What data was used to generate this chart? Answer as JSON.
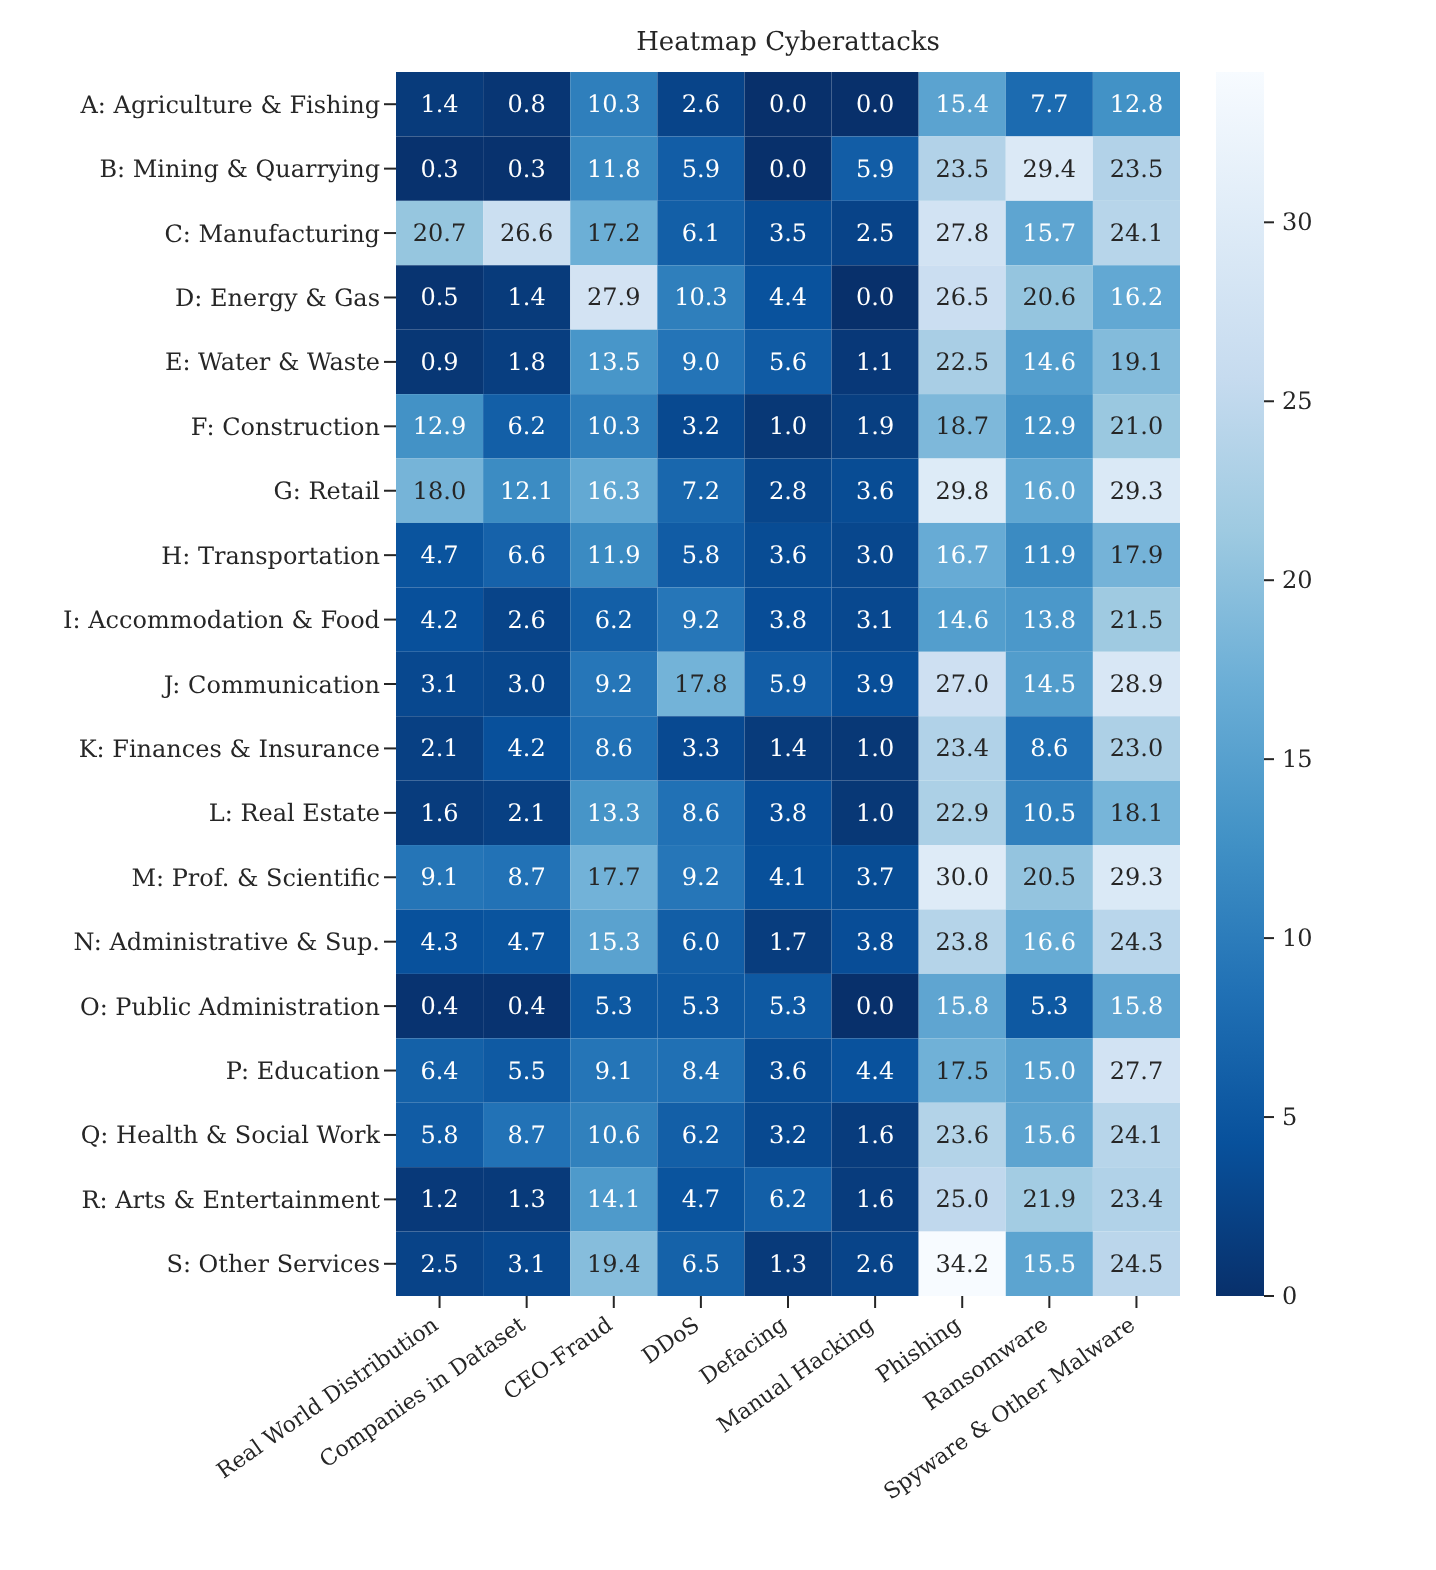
{
  "chart_data": {
    "type": "heatmap",
    "title": "Heatmap Cyberattacks",
    "categories": [
      "Real World Distribution",
      "Companies in Dataset",
      "CEO-Fraud",
      "DDoS",
      "Defacing",
      "Manual Hacking",
      "Phishing",
      "Ransomware",
      "Spyware & Other Malware"
    ],
    "y_categories": [
      "A: Agriculture & Fishing",
      "B: Mining & Quarrying",
      "C: Manufacturing",
      "D: Energy & Gas",
      "E: Water & Waste",
      "F: Construction",
      "G: Retail",
      "H: Transportation",
      "I: Accommodation & Food",
      "J: Communication",
      "K: Finances & Insurance",
      "L: Real Estate",
      "M: Prof. & Scientific",
      "N: Administrative & Sup.",
      "O: Public Administration",
      "P: Education",
      "Q: Health & Social Work",
      "R: Arts & Entertainment",
      "S: Other Services"
    ],
    "cells": [
      [
        1.4,
        0.8,
        10.3,
        2.6,
        0.0,
        0.0,
        15.4,
        7.7,
        12.8
      ],
      [
        0.3,
        0.3,
        11.8,
        5.9,
        0.0,
        5.9,
        23.5,
        29.4,
        23.5
      ],
      [
        20.7,
        26.6,
        17.2,
        6.1,
        3.5,
        2.5,
        27.8,
        15.7,
        24.1
      ],
      [
        0.5,
        1.4,
        27.9,
        10.3,
        4.4,
        0.0,
        26.5,
        20.6,
        16.2
      ],
      [
        0.9,
        1.8,
        13.5,
        9.0,
        5.6,
        1.1,
        22.5,
        14.6,
        19.1
      ],
      [
        12.9,
        6.2,
        10.3,
        3.2,
        1.0,
        1.9,
        18.7,
        12.9,
        21.0
      ],
      [
        18.0,
        12.1,
        16.3,
        7.2,
        2.8,
        3.6,
        29.8,
        16.0,
        29.3
      ],
      [
        4.7,
        6.6,
        11.9,
        5.8,
        3.6,
        3.0,
        16.7,
        11.9,
        17.9
      ],
      [
        4.2,
        2.6,
        6.2,
        9.2,
        3.8,
        3.1,
        14.6,
        13.8,
        21.5
      ],
      [
        3.1,
        3.0,
        9.2,
        17.8,
        5.9,
        3.9,
        27.0,
        14.5,
        28.9
      ],
      [
        2.1,
        4.2,
        8.6,
        3.3,
        1.4,
        1.0,
        23.4,
        8.6,
        23.0
      ],
      [
        1.6,
        2.1,
        13.3,
        8.6,
        3.8,
        1.0,
        22.9,
        10.5,
        18.1
      ],
      [
        9.1,
        8.7,
        17.7,
        9.2,
        4.1,
        3.7,
        30.0,
        20.5,
        29.3
      ],
      [
        4.3,
        4.7,
        15.3,
        6.0,
        1.7,
        3.8,
        23.8,
        16.6,
        24.3
      ],
      [
        0.4,
        0.4,
        5.3,
        5.3,
        5.3,
        0.0,
        15.8,
        5.3,
        15.8
      ],
      [
        6.4,
        5.5,
        9.1,
        8.4,
        3.6,
        4.4,
        17.5,
        15.0,
        27.7
      ],
      [
        5.8,
        8.7,
        10.6,
        6.2,
        3.2,
        1.6,
        23.6,
        15.6,
        24.1
      ],
      [
        1.2,
        1.3,
        14.1,
        4.7,
        6.2,
        1.6,
        25.0,
        21.9,
        23.4
      ],
      [
        2.5,
        3.1,
        19.4,
        6.5,
        1.3,
        2.6,
        34.2,
        15.5,
        24.5
      ]
    ],
    "cell_labels": [
      [
        "1.4",
        "0.8",
        "10.3",
        "2.6",
        "0.0",
        "0.0",
        "15.4",
        "7.7",
        "12.8"
      ],
      [
        "0.3",
        "0.3",
        "11.8",
        "5.9",
        "0.0",
        "5.9",
        "23.5",
        "29.4",
        "23.5"
      ],
      [
        "20.7",
        "26.6",
        "17.2",
        "6.1",
        "3.5",
        "2.5",
        "27.8",
        "15.7",
        "24.1"
      ],
      [
        "0.5",
        "1.4",
        "27.9",
        "10.3",
        "4.4",
        "0.0",
        "26.5",
        "20.6",
        "16.2"
      ],
      [
        "0.9",
        "1.8",
        "13.5",
        "9.0",
        "5.6",
        "1.1",
        "22.5",
        "14.6",
        "19.1"
      ],
      [
        "12.9",
        "6.2",
        "10.3",
        "3.2",
        "1.0",
        "1.9",
        "18.7",
        "12.9",
        "21.0"
      ],
      [
        "18.0",
        "12.1",
        "16.3",
        "7.2",
        "2.8",
        "3.6",
        "29.8",
        "16.0",
        "29.3"
      ],
      [
        "4.7",
        "6.6",
        "11.9",
        "5.8",
        "3.6",
        "3.0",
        "16.7",
        "11.9",
        "17.9"
      ],
      [
        "4.2",
        "2.6",
        "6.2",
        "9.2",
        "3.8",
        "3.1",
        "14.6",
        "13.8",
        "21.5"
      ],
      [
        "3.1",
        "3.0",
        "9.2",
        "17.8",
        "5.9",
        "3.9",
        "27.0",
        "14.5",
        "28.9"
      ],
      [
        "2.1",
        "4.2",
        "8.6",
        "3.3",
        "1.4",
        "1.0",
        "23.4",
        "8.6",
        "23.0"
      ],
      [
        "1.6",
        "2.1",
        "13.3",
        "8.6",
        "3.8",
        "1.0",
        "22.9",
        "10.5",
        "18.1"
      ],
      [
        "9.1",
        "8.7",
        "17.7",
        "9.2",
        "4.1",
        "3.7",
        "30.0",
        "20.5",
        "29.3"
      ],
      [
        "4.3",
        "4.7",
        "15.3",
        "6.0",
        "1.7",
        "3.8",
        "23.8",
        "16.6",
        "24.3"
      ],
      [
        "0.4",
        "0.4",
        "5.3",
        "5.3",
        "5.3",
        "0.0",
        "15.8",
        "5.3",
        "15.8"
      ],
      [
        "6.4",
        "5.5",
        "9.1",
        "8.4",
        "3.6",
        "4.4",
        "17.5",
        "15.0",
        "27.7"
      ],
      [
        "5.8",
        "8.7",
        "10.6",
        "6.2",
        "3.2",
        "1.6",
        "23.6",
        "15.6",
        "24.1"
      ],
      [
        "1.2",
        "1.3",
        "14.1",
        "4.7",
        "6.2",
        "1.6",
        "25.0",
        "21.9",
        "23.4"
      ],
      [
        "2.5",
        "3.1",
        "19.4",
        "6.5",
        "1.3",
        "2.6",
        "34.2",
        "15.5",
        "24.5"
      ]
    ],
    "clim": [
      0,
      34.2
    ],
    "cticks": [
      0,
      5,
      10,
      15,
      20,
      25,
      30
    ]
  }
}
